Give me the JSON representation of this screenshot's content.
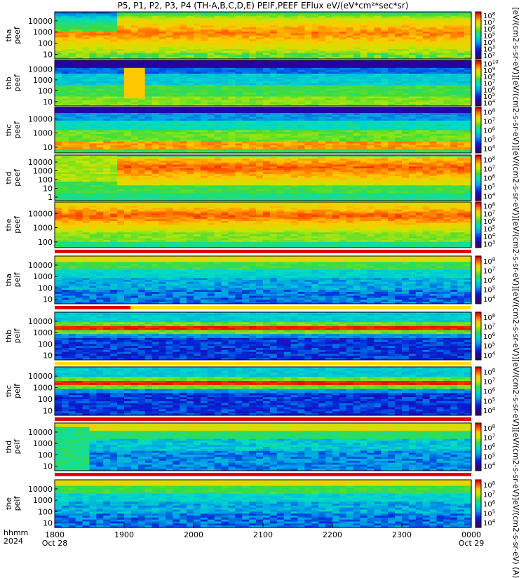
{
  "title": "P5, P1, P2, P3, P4 (TH-A,B,C,D,E) PEIF,PEEF EFlux eV/(eV*cm²*sec*sr)",
  "right_label": "[eV/(cm2-s-sr-eV)][eV/(cm2-s-sr-eV)][eV/(cm2-s-sr-eV)][eV/(cm2-s-sr-eV)][eV/(cm2-s-sr-eV)][eV/(cm2-s-sr-eV)][eV/(cm2-s-sr-eV)]eV/(cm2-s-sr-eV) (A)",
  "x_axis": {
    "row1_label": "hhmm",
    "row2_label": "2024",
    "ticks": [
      {
        "label": "1800",
        "sub": "Oct 28",
        "hour": 18
      },
      {
        "label": "1900",
        "sub": "",
        "hour": 19
      },
      {
        "label": "2000",
        "sub": "",
        "hour": 20
      },
      {
        "label": "2100",
        "sub": "",
        "hour": 21
      },
      {
        "label": "2200",
        "sub": "",
        "hour": 22
      },
      {
        "label": "2300",
        "sub": "",
        "hour": 23
      },
      {
        "label": "0000",
        "sub": "Oct 29",
        "hour": 24
      }
    ]
  },
  "chart_data": {
    "type": "heatmap",
    "x_range_hours": [
      18,
      24
    ],
    "y_scale": "log",
    "colormap": "rainbow (purple-blue-cyan-green-yellow-red)",
    "panels": [
      {
        "id": "tha-peef",
        "ylabel": [
          "tha",
          "peef"
        ],
        "yticks": [
          "10",
          "100",
          "1000",
          "10000"
        ],
        "cbar": [
          "10^2",
          "10^3",
          "10^4",
          "10^5",
          "10^6",
          "10^7",
          "10^8"
        ],
        "profile": "electron-hot",
        "strip_below": "none"
      },
      {
        "id": "thb-peef",
        "ylabel": [
          "thb",
          "peef"
        ],
        "yticks": [
          "10",
          "100",
          "1000",
          "10000"
        ],
        "cbar": [
          "10^4",
          "10^5",
          "10^6",
          "10^7",
          "10^8",
          "10^9",
          "10^10"
        ],
        "profile": "electron-solarwind",
        "strip_below": "none"
      },
      {
        "id": "thc-peef",
        "ylabel": [
          "thc",
          "peef"
        ],
        "yticks": [
          "10",
          "1000",
          "10000"
        ],
        "cbar": [
          "10^4",
          "10^5",
          "10^6",
          "10^7",
          "10^8"
        ],
        "profile": "electron-solarwind-c",
        "strip_below": "none"
      },
      {
        "id": "thd-peef",
        "ylabel": [
          "thd",
          "peef"
        ],
        "yticks": [
          "1",
          "10",
          "100",
          "1000",
          "10000"
        ],
        "cbar": [
          "10^4",
          "10^5",
          "10^6",
          "10^7",
          "10^8"
        ],
        "profile": "electron-hot-d",
        "strip_below": "none"
      },
      {
        "id": "the-peef",
        "ylabel": [
          "the",
          "peef"
        ],
        "yticks": [
          "100",
          "1000",
          "10000"
        ],
        "cbar": [
          "10^3",
          "10^4",
          "10^5",
          "10^6",
          "10^7",
          "10^8"
        ],
        "profile": "electron-hot-e",
        "strip_below": "red"
      },
      {
        "id": "tha-peif",
        "ylabel": [
          "tha",
          "peif"
        ],
        "yticks": [
          "10",
          "100",
          "1000",
          "10000"
        ],
        "cbar": [
          "10^4",
          "10^5",
          "10^6",
          "10^7",
          "10^8"
        ],
        "profile": "ion-hot",
        "strip_below": "red-yellow"
      },
      {
        "id": "thb-peif",
        "ylabel": [
          "thb",
          "peif"
        ],
        "yticks": [
          "10",
          "100",
          "1000",
          "10000"
        ],
        "cbar": [
          "10^4",
          "10^5",
          "10^6",
          "10^7",
          "10^8"
        ],
        "profile": "ion-sw",
        "strip_below": "yellow"
      },
      {
        "id": "thc-peif",
        "ylabel": [
          "thc",
          "peif"
        ],
        "yticks": [
          "10",
          "100",
          "1000",
          "10000"
        ],
        "cbar": [
          "10^4",
          "10^5",
          "10^6",
          "10^7",
          "10^8"
        ],
        "profile": "ion-sw",
        "strip_below": "red"
      },
      {
        "id": "thd-peif",
        "ylabel": [
          "thd",
          "peif"
        ],
        "yticks": [
          "10",
          "100",
          "1000",
          "10000"
        ],
        "cbar": [
          "10^4",
          "10^5",
          "10^6",
          "10^7",
          "10^8"
        ],
        "profile": "ion-hot-d",
        "strip_below": "red"
      },
      {
        "id": "the-peif",
        "ylabel": [
          "the",
          "peif"
        ],
        "yticks": [
          "10",
          "100",
          "1000",
          "10000"
        ],
        "cbar": [
          "10^4",
          "10^5",
          "10^6",
          "10^7",
          "10^8"
        ],
        "profile": "ion-hot",
        "strip_below": "none"
      }
    ]
  }
}
